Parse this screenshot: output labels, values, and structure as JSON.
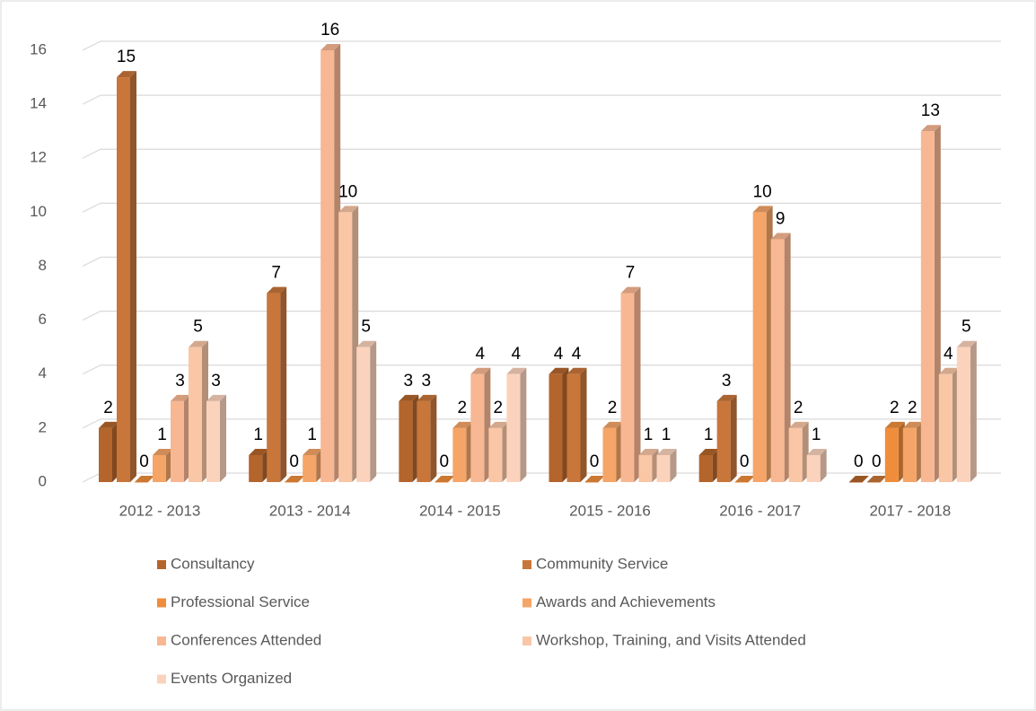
{
  "chart_data": {
    "type": "bar3d",
    "categories": [
      "2012 - 2013",
      "2013 - 2014",
      "2014 - 2015",
      "2015 - 2016",
      "2016 - 2017",
      "2017 - 2018"
    ],
    "series": [
      {
        "name": "Consultancy",
        "color": "#b4652c",
        "values": [
          2,
          1,
          3,
          4,
          1,
          0
        ]
      },
      {
        "name": "Community Service",
        "color": "#c8763a",
        "values": [
          15,
          7,
          3,
          4,
          3,
          0
        ]
      },
      {
        "name": "Professional Service",
        "color": "#ef8d3c",
        "values": [
          0,
          0,
          0,
          0,
          0,
          2
        ]
      },
      {
        "name": "Awards and Achievements",
        "color": "#f5a568",
        "values": [
          1,
          1,
          2,
          2,
          10,
          2
        ]
      },
      {
        "name": "Conferences Attended",
        "color": "#f8b793",
        "values": [
          3,
          16,
          4,
          7,
          9,
          13
        ]
      },
      {
        "name": "Workshop, Training, and Visits Attended",
        "color": "#f9c6a6",
        "values": [
          5,
          10,
          2,
          1,
          2,
          4
        ]
      },
      {
        "name": "Events Organized",
        "color": "#fbd3bd",
        "values": [
          3,
          5,
          4,
          1,
          1,
          5
        ]
      }
    ],
    "ylim": [
      0,
      16
    ],
    "yticks": [
      0,
      2,
      4,
      6,
      8,
      10,
      12,
      14,
      16
    ],
    "grid": true
  }
}
